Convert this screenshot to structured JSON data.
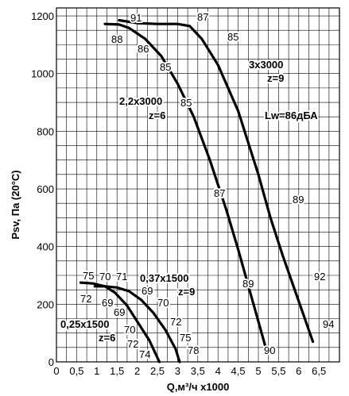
{
  "chart_data": {
    "type": "line",
    "ylabel": "Psv, Па (20°С)",
    "xlabel": "Q,м³/ч х1000",
    "xlim": [
      0,
      6.6
    ],
    "ylim": [
      0,
      1230
    ],
    "grid": true,
    "x_ticks": [
      "0",
      "0,5",
      "1",
      "1,5",
      "2",
      "2,5",
      "3",
      "3,5",
      "4",
      "4,5",
      "5",
      "5,5",
      "6",
      "6,5"
    ],
    "y_ticks": [
      "0",
      "200",
      "400",
      "600",
      "800",
      "1000",
      "1200"
    ],
    "series": [
      {
        "name": "3х3000 z=9",
        "values": [
          [
            1.55,
            1185
          ],
          [
            2.0,
            1175
          ],
          [
            2.5,
            1172
          ],
          [
            3.0,
            1172
          ],
          [
            3.3,
            1165
          ],
          [
            3.6,
            1120
          ],
          [
            4.0,
            1030
          ],
          [
            4.5,
            870
          ],
          [
            5.0,
            650
          ],
          [
            5.3,
            500
          ],
          [
            5.6,
            370
          ],
          [
            5.9,
            250
          ],
          [
            6.1,
            170
          ],
          [
            6.35,
            70
          ]
        ]
      },
      {
        "name": "2,2х3000 z=6",
        "values": [
          [
            1.2,
            1172
          ],
          [
            1.55,
            1170
          ],
          [
            1.8,
            1158
          ],
          [
            2.2,
            1120
          ],
          [
            2.6,
            1060
          ],
          [
            3.0,
            965
          ],
          [
            3.4,
            850
          ],
          [
            3.8,
            700
          ],
          [
            4.2,
            530
          ],
          [
            4.5,
            390
          ],
          [
            4.8,
            240
          ],
          [
            5.0,
            140
          ],
          [
            5.2,
            40
          ]
        ]
      },
      {
        "name": "0,37х1500 z=9",
        "values": [
          [
            0.95,
            262
          ],
          [
            1.2,
            262
          ],
          [
            1.5,
            258
          ],
          [
            1.8,
            245
          ],
          [
            2.1,
            215
          ],
          [
            2.4,
            170
          ],
          [
            2.7,
            110
          ],
          [
            2.95,
            45
          ],
          [
            3.05,
            0
          ]
        ]
      },
      {
        "name": "0,25х1500 z=6",
        "values": [
          [
            0.6,
            275
          ],
          [
            0.9,
            272
          ],
          [
            1.2,
            262
          ],
          [
            1.45,
            240
          ],
          [
            1.75,
            195
          ],
          [
            2.0,
            140
          ],
          [
            2.3,
            75
          ],
          [
            2.55,
            0
          ]
        ]
      }
    ],
    "annotations": {
      "big_efficiency": [
        "91",
        "87",
        "88",
        "86",
        "85",
        "85",
        "85",
        "87",
        "89",
        "89",
        "92",
        "94",
        "90"
      ],
      "small_efficiency": [
        "75",
        "70",
        "71",
        "72",
        "69",
        "69",
        "69",
        "70",
        "70",
        "72",
        "72",
        "75",
        "74",
        "78"
      ],
      "motor_3000": "3х3000",
      "z9_3000": "z=9",
      "motor_2200": "2,2х3000",
      "z6_2200": "z=6",
      "motor_0370": "0,37х1500",
      "z9_0370": "z=9",
      "motor_0250": "0,25х1500",
      "z6_0250": "z=6",
      "noise": "Lw=86дБА"
    }
  }
}
